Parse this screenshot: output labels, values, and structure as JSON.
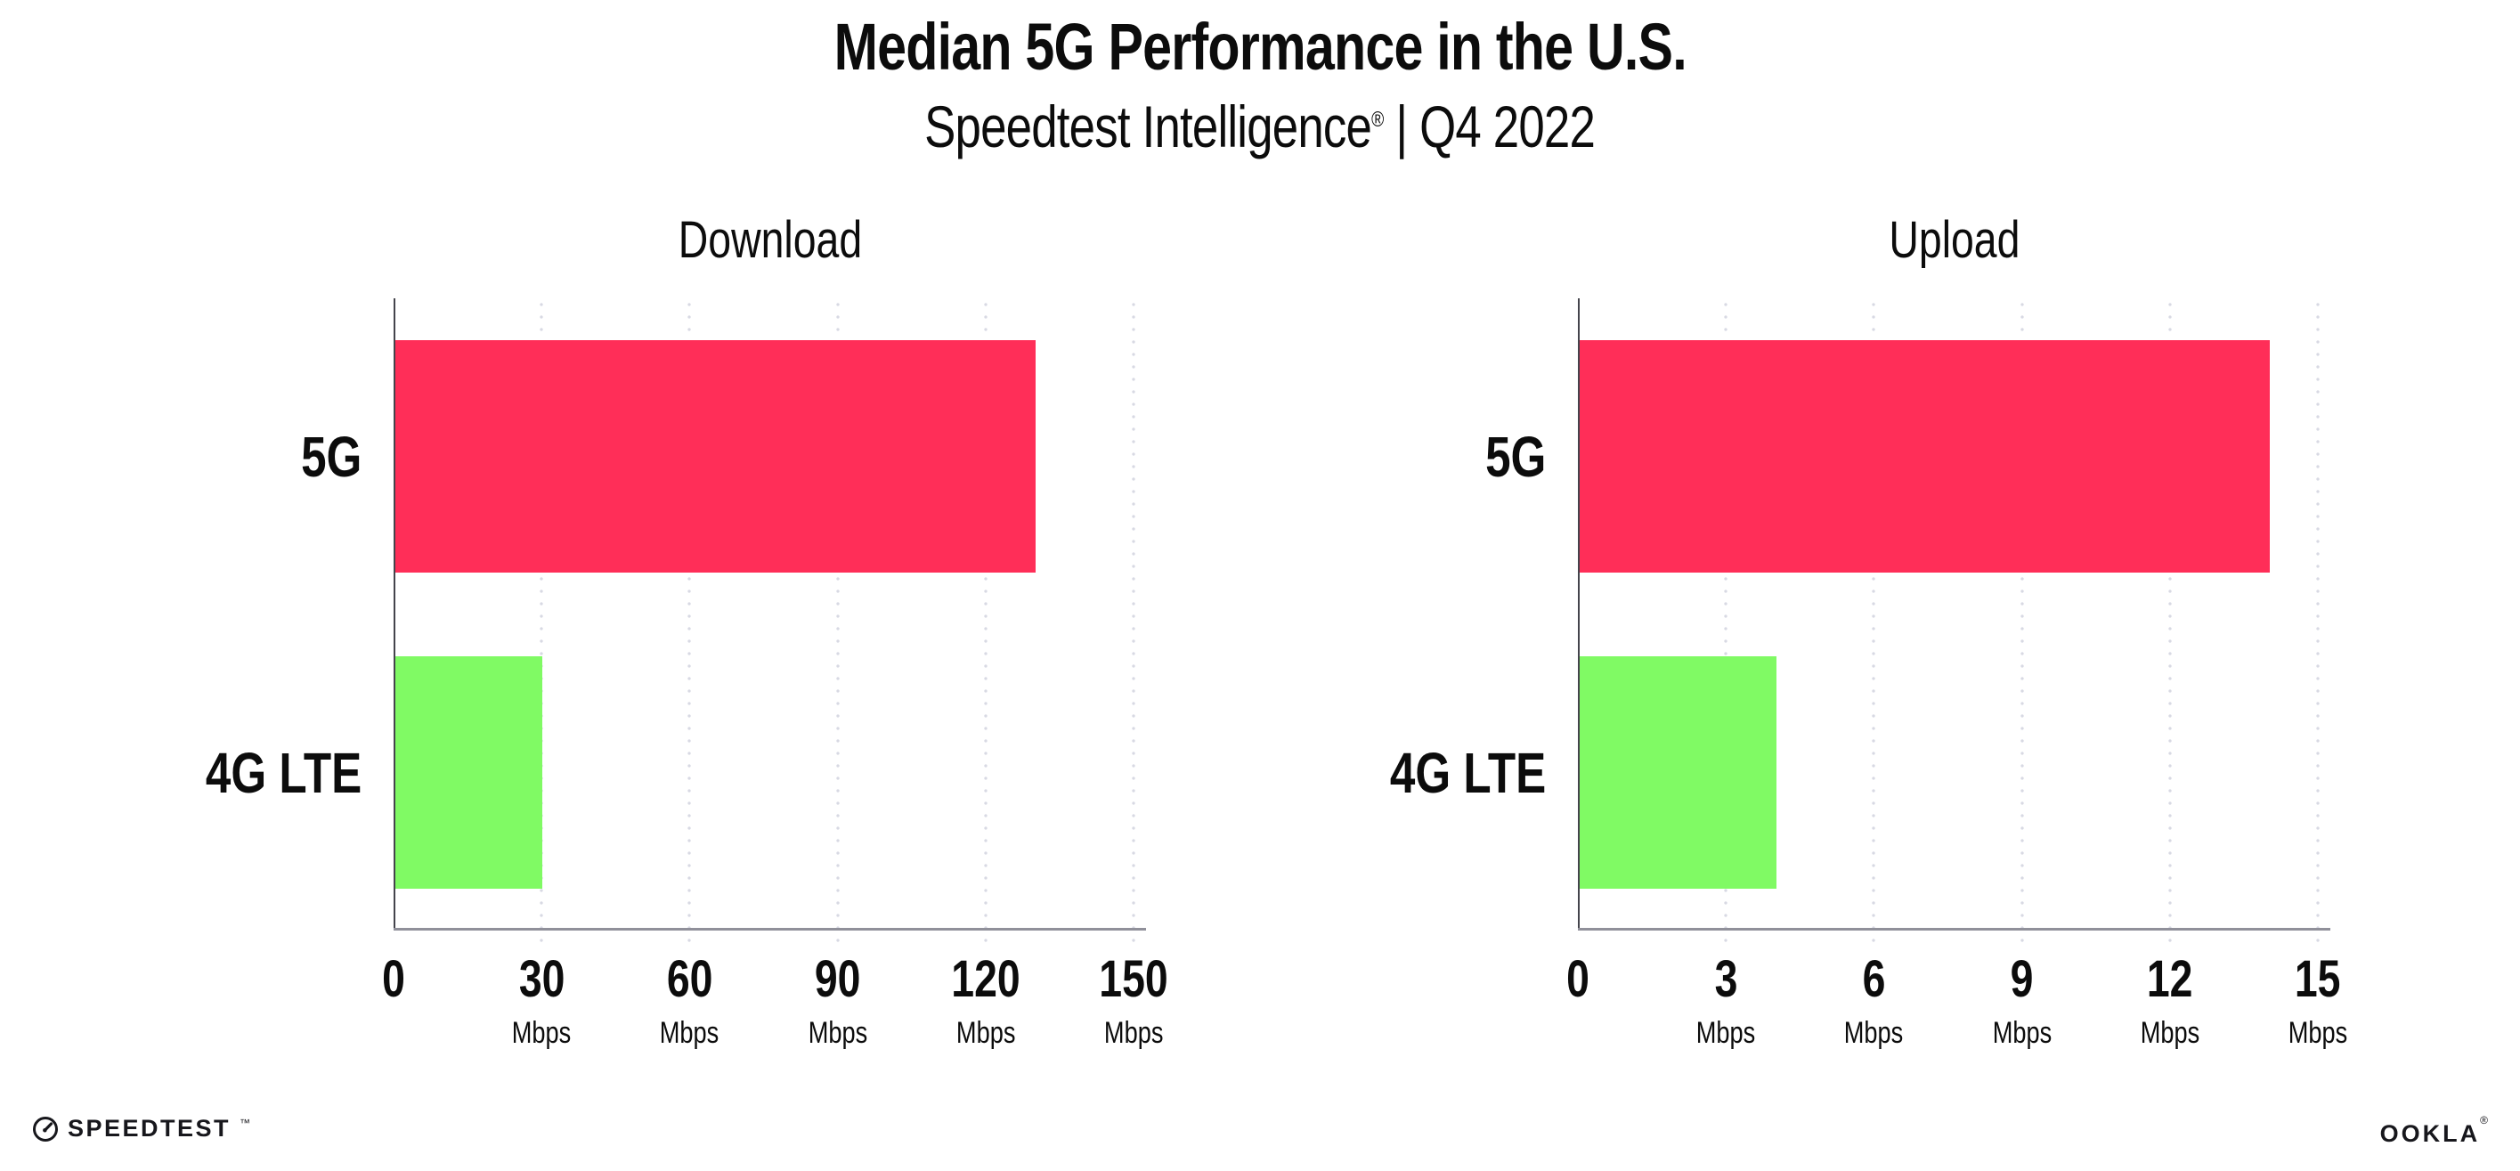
{
  "header": {
    "title": "Median 5G Performance in the U.S.",
    "subtitle_brand": "Speedtest Intelligence",
    "subtitle_mark": "®",
    "subtitle_rest": " | Q4 2022"
  },
  "chart_data": [
    {
      "type": "bar",
      "orientation": "horizontal",
      "title": "Download",
      "categories": [
        "5G",
        "4G LTE"
      ],
      "values": [
        130,
        30
      ],
      "unit": "Mbps",
      "ticks": [
        0,
        30,
        60,
        90,
        120,
        150
      ],
      "xlim": [
        0,
        152.5
      ],
      "bar_colors": [
        "#ff2e58",
        "#80fa64"
      ],
      "grid": "dotted-vertical",
      "legend": "none"
    },
    {
      "type": "bar",
      "orientation": "horizontal",
      "title": "Upload",
      "categories": [
        "5G",
        "4G LTE"
      ],
      "values": [
        14,
        4
      ],
      "unit": "Mbps",
      "ticks": [
        0,
        3,
        6,
        9,
        12,
        15
      ],
      "xlim": [
        0,
        15.25
      ],
      "bar_colors": [
        "#ff2e58",
        "#80fa64"
      ],
      "grid": "dotted-vertical",
      "legend": "none"
    }
  ],
  "footer": {
    "speedtest_label": "SPEEDTEST",
    "speedtest_mark": "™",
    "ookla_label": "OOKLA",
    "ookla_mark": "®"
  },
  "colors": {
    "bar_5g": "#ff2e58",
    "bar_4g_lte": "#80fa64",
    "x_axis": "#90909a",
    "y_axis": "#44444c",
    "grid_dot": "#d8d9e3",
    "text": "#0c0c0c"
  }
}
